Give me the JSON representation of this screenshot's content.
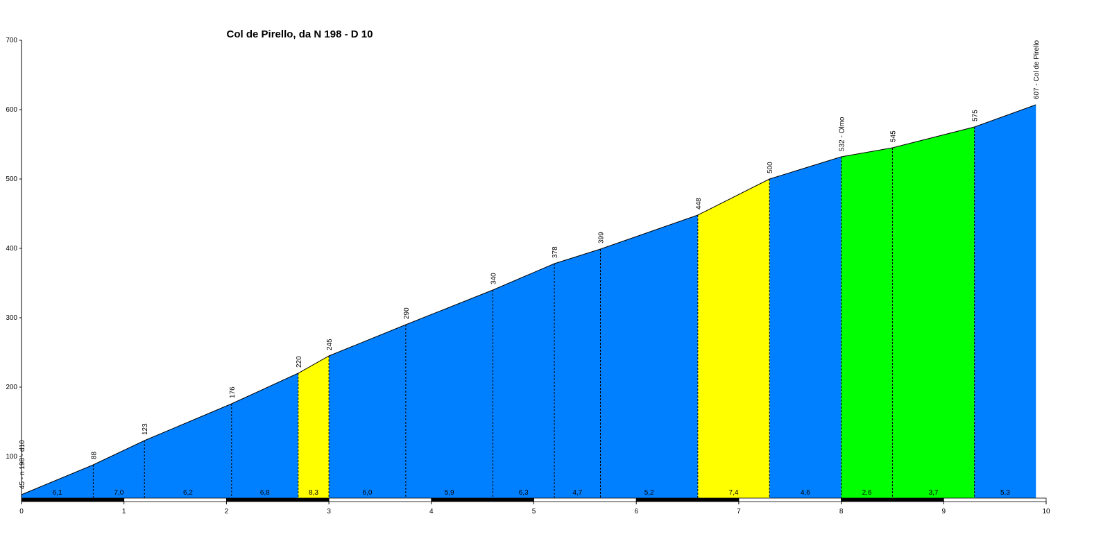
{
  "chart_data": {
    "type": "area",
    "title": "Col de Pirello, da N 198 - D 10",
    "xlabel": "",
    "ylabel": "",
    "xlim": [
      0,
      10
    ],
    "ylim": [
      40,
      700
    ],
    "x_ticks": [
      0,
      1,
      2,
      3,
      4,
      5,
      6,
      7,
      8,
      9,
      10
    ],
    "y_ticks": [
      100,
      200,
      300,
      400,
      500,
      600,
      700
    ],
    "grid": false,
    "points": [
      {
        "x": 0.0,
        "y": 45,
        "label": "45 - n 198 - d10"
      },
      {
        "x": 0.7,
        "y": 88,
        "label": "88"
      },
      {
        "x": 1.2,
        "y": 123,
        "label": "123"
      },
      {
        "x": 2.05,
        "y": 176,
        "label": "176"
      },
      {
        "x": 2.7,
        "y": 220,
        "label": "220"
      },
      {
        "x": 3.0,
        "y": 245,
        "label": "245"
      },
      {
        "x": 3.75,
        "y": 290,
        "label": "290"
      },
      {
        "x": 4.6,
        "y": 340,
        "label": "340"
      },
      {
        "x": 5.2,
        "y": 378,
        "label": "378"
      },
      {
        "x": 5.65,
        "y": 399,
        "label": "399"
      },
      {
        "x": 6.6,
        "y": 448,
        "label": "448"
      },
      {
        "x": 7.3,
        "y": 500,
        "label": "500"
      },
      {
        "x": 8.0,
        "y": 532,
        "label": "532 - Olmo"
      },
      {
        "x": 8.5,
        "y": 545,
        "label": "545"
      },
      {
        "x": 9.3,
        "y": 575,
        "label": "575"
      },
      {
        "x": 9.9,
        "y": 607,
        "label": "607 - Col de Pirello"
      }
    ],
    "segments": [
      {
        "gradient": "6,1",
        "color": "#0080ff"
      },
      {
        "gradient": "7,0",
        "color": "#0080ff"
      },
      {
        "gradient": "6,2",
        "color": "#0080ff"
      },
      {
        "gradient": "6,8",
        "color": "#0080ff"
      },
      {
        "gradient": "8,3",
        "color": "#ffff00"
      },
      {
        "gradient": "6,0",
        "color": "#0080ff"
      },
      {
        "gradient": "5,9",
        "color": "#0080ff"
      },
      {
        "gradient": "6,3",
        "color": "#0080ff"
      },
      {
        "gradient": "4,7",
        "color": "#0080ff"
      },
      {
        "gradient": "5,2",
        "color": "#0080ff"
      },
      {
        "gradient": "7,4",
        "color": "#ffff00"
      },
      {
        "gradient": "4,6",
        "color": "#0080ff"
      },
      {
        "gradient": "2,6",
        "color": "#00ff00"
      },
      {
        "gradient": "3,7",
        "color": "#00ff00"
      },
      {
        "gradient": "5,3",
        "color": "#0080ff"
      }
    ]
  }
}
